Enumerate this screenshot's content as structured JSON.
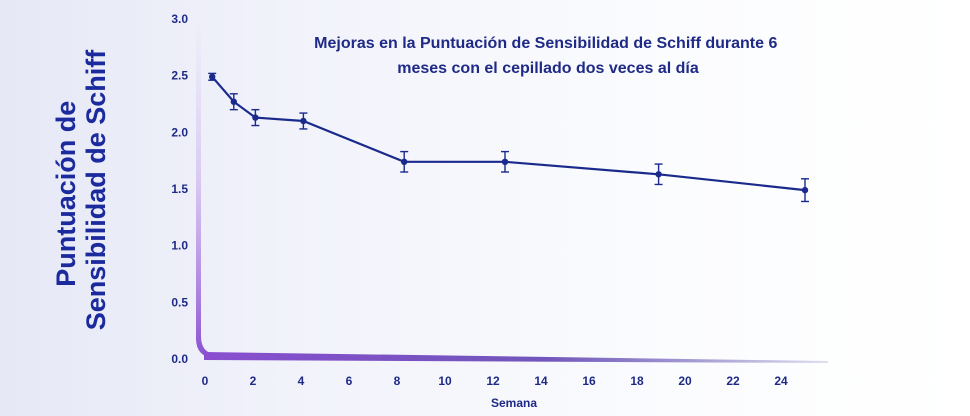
{
  "colors": {
    "series": "#1a2a8c",
    "text": "#1f2a86",
    "axis_accent": "#8a4fd0"
  },
  "chart_data": {
    "type": "line",
    "title_lines": [
      "Mejoras en la Puntuación de Sensibilidad de Schiff durante 6",
      "meses con el cepillado dos veces al día"
    ],
    "ylabel_lines": [
      "Puntuación de",
      "Sensibilidad de Schiff"
    ],
    "xlabel": "Semana",
    "xlim": [
      0,
      26
    ],
    "ylim": [
      0,
      3.0
    ],
    "xticks": [
      0,
      2,
      4,
      6,
      8,
      10,
      12,
      14,
      16,
      18,
      20,
      22,
      24
    ],
    "yticks": [
      "0.0",
      "0.5",
      "1.0",
      "1.5",
      "2.0",
      "2.5",
      "3.0"
    ],
    "grid": false,
    "series": [
      {
        "x": [
          0.3,
          1.2,
          2.1,
          4.1,
          8.3,
          12.5,
          18.9,
          25.0
        ],
        "y": [
          2.49,
          2.27,
          2.13,
          2.1,
          1.74,
          1.74,
          1.63,
          1.49
        ],
        "err": [
          0.03,
          0.07,
          0.07,
          0.07,
          0.09,
          0.09,
          0.09,
          0.1
        ]
      }
    ]
  }
}
